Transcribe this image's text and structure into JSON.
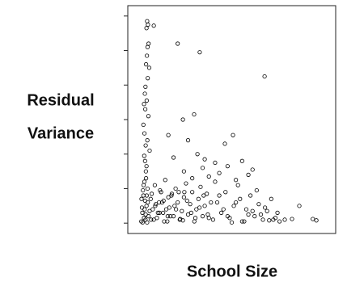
{
  "chart_data": {
    "type": "scatter",
    "ylabel": [
      "Residual",
      "Variance"
    ],
    "xlabel": "School Size",
    "color": "#000000",
    "xlim": [
      0,
      100
    ],
    "ylim": [
      -0.3,
      6.3
    ],
    "yticks": [
      0,
      1,
      2,
      3,
      4,
      5,
      6
    ],
    "x": [
      9.3,
      9.7,
      9.0,
      12.5,
      9.5,
      10.0,
      9.2,
      8.8,
      10.3,
      9.6,
      8.5,
      8.2,
      9.1,
      7.8,
      8.4,
      9.9,
      7.5,
      8.0,
      9.4,
      8.6,
      10.5,
      7.9,
      8.3,
      9.0,
      8.7,
      24,
      34.6,
      65.8,
      19.5,
      26.5,
      31.9,
      50.6,
      46.7,
      33.5,
      22,
      37,
      29,
      42,
      55,
      48,
      60,
      36,
      27,
      44,
      58,
      39,
      31,
      52,
      6.5,
      7,
      7.5,
      8,
      8.5,
      9,
      9.5,
      10,
      11,
      12,
      13,
      14,
      15,
      16,
      17,
      18,
      19,
      20,
      21,
      22,
      23,
      24,
      25,
      26,
      27,
      28,
      29,
      30,
      31,
      32,
      33,
      34,
      35,
      36,
      37,
      38,
      39,
      40,
      6.8,
      7.3,
      7.8,
      8.3,
      8.8,
      9.3,
      10.5,
      11.5,
      12.5,
      13.5,
      14.5,
      15.5,
      16.5,
      17.5,
      18.5,
      19.5,
      20.5,
      22.5,
      24.5,
      26.5,
      28.5,
      30.5,
      32.5,
      34.5,
      36.5,
      38.5,
      6.6,
      7.1,
      7.6,
      8.1,
      8.6,
      9.1,
      9.6,
      11.2,
      13.2,
      15.2,
      17.2,
      19.2,
      21.2,
      23.2,
      25.2,
      27.2,
      41,
      43,
      45,
      47,
      49,
      51,
      53,
      55,
      57,
      59,
      61,
      63,
      65,
      67,
      69,
      71,
      73,
      42,
      46,
      50,
      54,
      58,
      62,
      66,
      70,
      44,
      48,
      52,
      56,
      60,
      64,
      68,
      72,
      75.5,
      79,
      82.5,
      89,
      90.7
    ],
    "y": [
      5.85,
      5.75,
      5.65,
      5.72,
      5.1,
      5.2,
      4.85,
      4.6,
      4.5,
      4.2,
      3.95,
      3.75,
      3.55,
      3.45,
      3.3,
      3.1,
      2.85,
      2.6,
      2.4,
      2.25,
      2.1,
      1.95,
      1.8,
      1.65,
      1.5,
      5.2,
      4.95,
      4.25,
      2.55,
      3.0,
      3.15,
      2.55,
      2.3,
      2.0,
      1.9,
      1.85,
      2.4,
      1.75,
      1.8,
      1.65,
      1.55,
      1.6,
      1.5,
      1.45,
      1.4,
      1.35,
      1.3,
      1.25,
      0.05,
      0.3,
      0.8,
      1.2,
      0.1,
      0.5,
      1.0,
      0.2,
      0.7,
      0.4,
      1.1,
      0.15,
      0.6,
      0.9,
      0.3,
      1.25,
      0.05,
      0.45,
      0.8,
      0.2,
      1.0,
      0.6,
      0.1,
      0.35,
      0.75,
      1.15,
      0.25,
      0.55,
      0.9,
      0.05,
      0.4,
      0.7,
      1.05,
      0.2,
      0.5,
      0.85,
      0.15,
      0.6,
      0.45,
      0.95,
      0.15,
      0.65,
      1.3,
      0.02,
      0.35,
      0.85,
      0.1,
      0.55,
      0.3,
      0.95,
      0.6,
      0.05,
      0.4,
      0.75,
      0.2,
      0.5,
      0.9,
      0.08,
      0.65,
      0.3,
      0.15,
      0.45,
      0.8,
      0.25,
      0.7,
      0.02,
      1.1,
      0.4,
      0.25,
      0.8,
      0.6,
      0.1,
      0.5,
      0.3,
      0.65,
      0.2,
      0.85,
      0.4,
      0.12,
      0.9,
      0.1,
      0.6,
      0.3,
      0.9,
      0.15,
      0.5,
      1.1,
      0.05,
      0.4,
      0.8,
      0.2,
      0.55,
      0.1,
      0.35,
      0.7,
      0.15,
      0.05,
      1.2,
      0.4,
      0.02,
      0.7,
      0.25,
      0.95,
      0.45,
      0.1,
      0.8,
      0.2,
      0.6,
      0.05,
      0.35,
      0.25,
      0.08,
      0.3,
      0.1,
      0.12,
      0.5,
      0.12,
      0.08
    ]
  }
}
